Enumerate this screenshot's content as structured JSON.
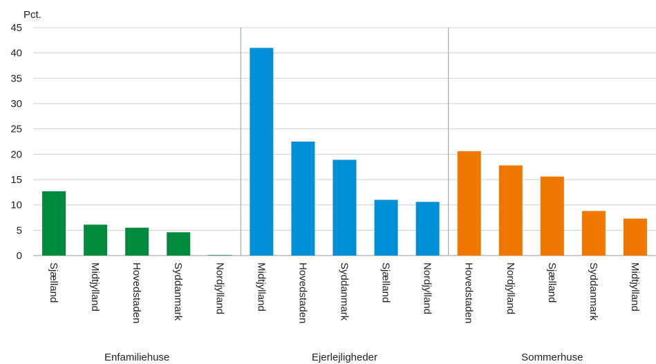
{
  "chart_data": {
    "type": "bar",
    "ylabel": "Pct.",
    "ylim": [
      0,
      45
    ],
    "yticks": [
      "0",
      "5",
      "10",
      "15",
      "20",
      "25",
      "30",
      "35",
      "40",
      "45"
    ],
    "grid": true,
    "groups": [
      {
        "name": "Enfamiliehuse",
        "color": "#008a3e",
        "categories": [
          "Sjælland",
          "Midtjylland",
          "Hovedstaden",
          "Syddanmark",
          "Nordjylland"
        ],
        "values": [
          12.7,
          6.1,
          5.5,
          4.6,
          0.1
        ]
      },
      {
        "name": "Ejerlejligheder",
        "color": "#0090d8",
        "categories": [
          "Midtjylland",
          "Hovedstaden",
          "Syddanmark",
          "Sjælland",
          "Nordjylland"
        ],
        "values": [
          41.0,
          22.5,
          18.9,
          11.0,
          10.6
        ]
      },
      {
        "name": "Sommerhuse",
        "color": "#f07800",
        "categories": [
          "Hovedstaden",
          "Nordjylland",
          "Sjælland",
          "Syddanmark",
          "Midtjylland"
        ],
        "values": [
          20.6,
          17.8,
          15.6,
          8.8,
          7.3
        ]
      }
    ]
  }
}
